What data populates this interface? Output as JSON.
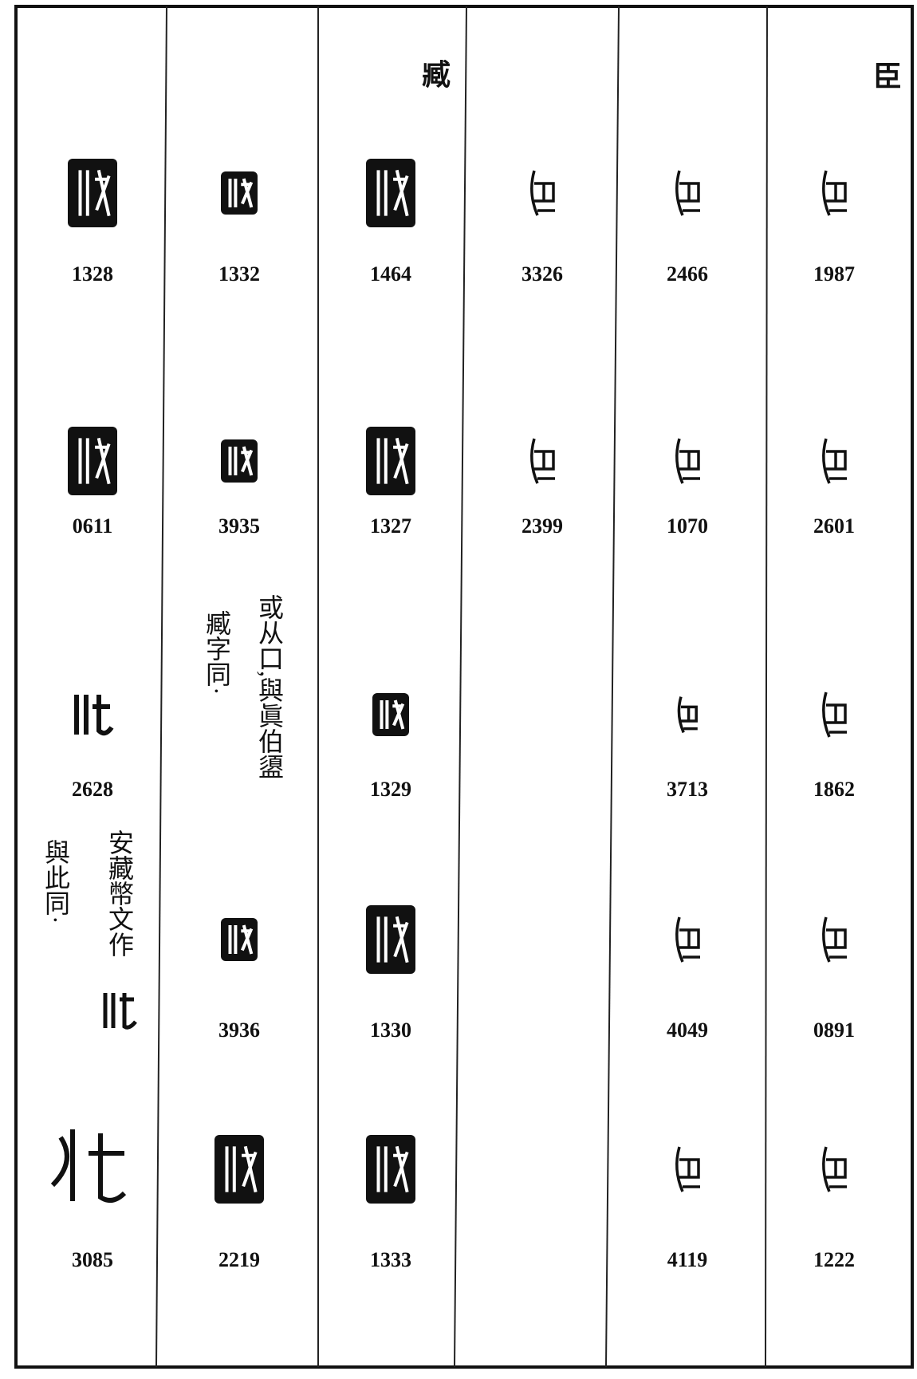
{
  "headers": {
    "zang": "臧",
    "chen": "臣"
  },
  "columns": [
    {
      "entries": [
        "1328",
        "0611",
        "2628",
        "3085"
      ],
      "note": {
        "right": "安藏幣文作",
        "left": "與此同·"
      }
    },
    {
      "entries": [
        "1332",
        "3935",
        "3936",
        "2219"
      ],
      "note": {
        "right": "或从口,與眞伯盨",
        "left": "臧字同·"
      }
    },
    {
      "entries": [
        "1464",
        "1327",
        "1329",
        "1330",
        "1333"
      ]
    },
    {
      "entries": [
        "3326",
        "2399"
      ]
    },
    {
      "entries": [
        "2466",
        "1070",
        "3713",
        "4049",
        "4119"
      ]
    },
    {
      "entries": [
        "1987",
        "2601",
        "1862",
        "0891",
        "1222"
      ]
    }
  ]
}
